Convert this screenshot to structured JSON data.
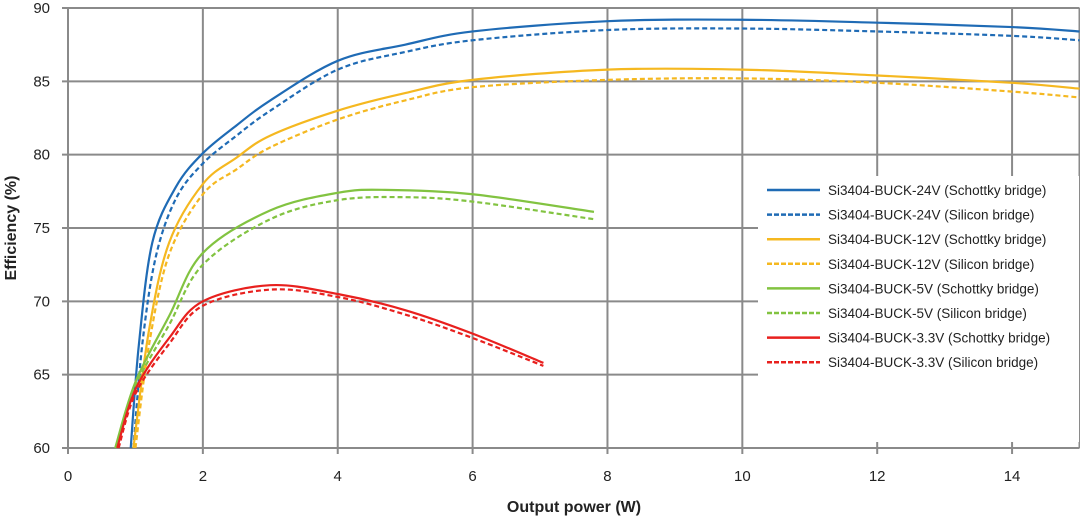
{
  "chart_data": {
    "type": "line",
    "title": "",
    "xlabel": "Output power (W)",
    "ylabel": "Efficiency (%)",
    "xlim": [
      0,
      15
    ],
    "ylim": [
      60,
      90
    ],
    "xticks": [
      0,
      2,
      4,
      6,
      8,
      10,
      12,
      14
    ],
    "yticks": [
      60,
      65,
      70,
      75,
      80,
      85,
      90
    ],
    "grid": true,
    "legend_position": "right",
    "series": [
      {
        "name": "Si3404-BUCK-24V (Schottky bridge)",
        "color": "#1f6bb5",
        "dash": false,
        "x": [
          0.93,
          1.05,
          1.25,
          1.6,
          2,
          2.5,
          3,
          4,
          5,
          6,
          8,
          10,
          12,
          14,
          15
        ],
        "y": [
          60,
          67,
          74,
          77.8,
          80.1,
          82,
          83.7,
          86.4,
          87.5,
          88.4,
          89.1,
          89.2,
          89.0,
          88.7,
          88.4
        ]
      },
      {
        "name": "Si3404-BUCK-24V (Silicon bridge)",
        "color": "#1f6bb5",
        "dash": true,
        "x": [
          0.97,
          1.1,
          1.3,
          1.6,
          2,
          2.5,
          3,
          4,
          5,
          6,
          8,
          10,
          12,
          14,
          15
        ],
        "y": [
          60,
          67,
          73,
          77,
          79.4,
          81.3,
          83.0,
          85.8,
          87.0,
          87.8,
          88.5,
          88.6,
          88.4,
          88.1,
          87.8
        ]
      },
      {
        "name": "Si3404-BUCK-12V (Schottky bridge)",
        "color": "#f5b820",
        "dash": false,
        "x": [
          0.97,
          1.2,
          1.5,
          2,
          2.5,
          3,
          4,
          5,
          6,
          8,
          10,
          12,
          14,
          15
        ],
        "y": [
          60,
          68,
          74,
          78.0,
          79.8,
          81.3,
          83.0,
          84.2,
          85.1,
          85.8,
          85.8,
          85.4,
          84.9,
          84.5
        ]
      },
      {
        "name": "Si3404-BUCK-12V (Silicon bridge)",
        "color": "#f5b820",
        "dash": true,
        "x": [
          1.0,
          1.2,
          1.5,
          2,
          2.5,
          3,
          4,
          5,
          6,
          8,
          10,
          12,
          14,
          15
        ],
        "y": [
          60,
          67,
          73.2,
          77.3,
          79.0,
          80.5,
          82.4,
          83.7,
          84.6,
          85.1,
          85.2,
          84.9,
          84.3,
          83.9
        ]
      },
      {
        "name": "Si3404-BUCK-5V (Schottky bridge)",
        "color": "#82c341",
        "dash": false,
        "x": [
          0.7,
          1,
          1.5,
          2,
          3,
          4,
          4.7,
          6,
          7.8
        ],
        "y": [
          60,
          64.5,
          69,
          73.3,
          76.2,
          77.4,
          77.6,
          77.3,
          76.1
        ]
      },
      {
        "name": "Si3404-BUCK-5V (Silicon bridge)",
        "color": "#82c341",
        "dash": true,
        "x": [
          0.72,
          1,
          1.5,
          2,
          3,
          4,
          5,
          6,
          7.8
        ],
        "y": [
          60,
          64.2,
          68.4,
          72.5,
          75.6,
          76.9,
          77.1,
          76.8,
          75.6
        ]
      },
      {
        "name": "Si3404-BUCK-3.3V (Schottky bridge)",
        "color": "#e8201e",
        "dash": false,
        "x": [
          0.73,
          1,
          1.5,
          2,
          3,
          4,
          5,
          6,
          7.05
        ],
        "y": [
          60,
          64,
          67.5,
          70.0,
          71.1,
          70.5,
          69.4,
          67.8,
          65.8
        ]
      },
      {
        "name": "Si3404-BUCK-3.3V (Silicon bridge)",
        "color": "#e8201e",
        "dash": true,
        "x": [
          0.75,
          1,
          1.5,
          2,
          3,
          4,
          5,
          6,
          7.05
        ],
        "y": [
          60,
          63.7,
          67.1,
          69.7,
          70.8,
          70.3,
          69.1,
          67.5,
          65.6
        ]
      }
    ]
  }
}
